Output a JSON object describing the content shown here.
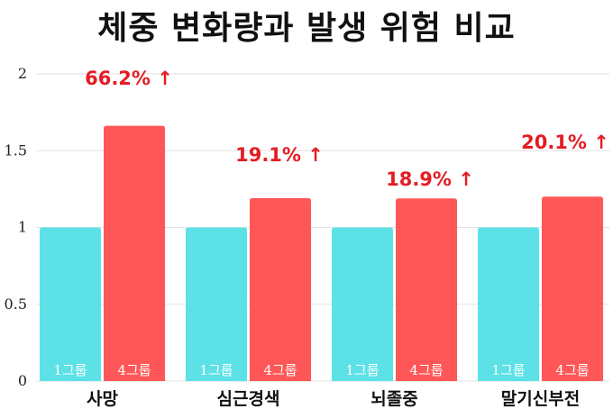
{
  "title": "체중 변화량과 발생 위험 비교",
  "colors": {
    "group1": "#5ce1e6",
    "group4": "#ff5757",
    "annotation": "#e51c23",
    "grid": "#e2e2e2"
  },
  "chart_data": {
    "type": "bar",
    "title": "체중 변화량과 발생 위험 비교",
    "categories": [
      "사망",
      "심근경색",
      "뇌졸중",
      "말기신부전"
    ],
    "series": [
      {
        "name": "1그룹",
        "values": [
          1,
          1,
          1,
          1
        ]
      },
      {
        "name": "4그룹",
        "values": [
          1.662,
          1.191,
          1.189,
          1.201
        ]
      }
    ],
    "annotations": [
      "66.2% ↑",
      "19.1% ↑",
      "18.9% ↑",
      "20.1% ↑"
    ],
    "yticks": [
      "0",
      "0.5",
      "1",
      "1.5",
      "2"
    ],
    "ylim": [
      0,
      2
    ],
    "grid": true,
    "legend": "none"
  }
}
